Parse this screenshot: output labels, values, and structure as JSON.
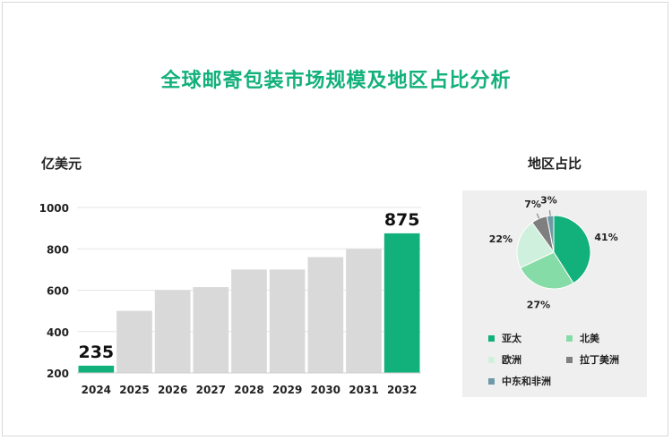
{
  "title": "全球邮寄包装市场规模及地区占比分析",
  "chart_data": [
    {
      "type": "bar",
      "ylabel": "亿美元",
      "categories": [
        "2024",
        "2025",
        "2026",
        "2027",
        "2028",
        "2029",
        "2030",
        "2031",
        "2032"
      ],
      "values": [
        235,
        500,
        600,
        615,
        700,
        700,
        760,
        800,
        875
      ],
      "highlighted": [
        0,
        8
      ],
      "data_labels": {
        "0": "235",
        "8": "875"
      },
      "ylim": [
        200,
        1000
      ],
      "yticks": [
        200,
        400,
        600,
        800,
        1000
      ],
      "colors": {
        "highlight": "#12b07a",
        "normal": "#d9d9d9"
      },
      "grid": true
    },
    {
      "type": "pie",
      "title": "地区占比",
      "slices": [
        {
          "name": "亚太",
          "value": 41,
          "label": "41%",
          "color": "#12b07a"
        },
        {
          "name": "北美",
          "value": 27,
          "label": "27%",
          "color": "#86dca7"
        },
        {
          "name": "欧洲",
          "value": 22,
          "label": "22%",
          "color": "#cff0dd"
        },
        {
          "name": "拉丁美洲",
          "value": 7,
          "label": "7%",
          "color": "#7f7f7f"
        },
        {
          "name": "中东和非洲",
          "value": 3,
          "label": "3%",
          "color": "#6e9aa7"
        }
      ],
      "legend_position": "bottom"
    }
  ]
}
